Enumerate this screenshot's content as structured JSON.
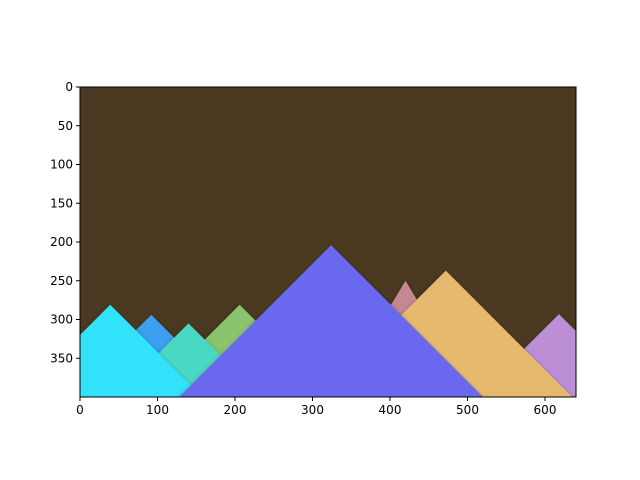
{
  "chart_data": {
    "type": "area",
    "title": "",
    "xlabel": "",
    "ylabel": "",
    "xlim": [
      0,
      640
    ],
    "ylim": [
      400,
      0
    ],
    "y_inverted": true,
    "grid": false,
    "background_color": "#4a3820",
    "xticks": [
      0,
      100,
      200,
      300,
      400,
      500,
      600
    ],
    "yticks": [
      0,
      50,
      100,
      150,
      200,
      250,
      300,
      350
    ],
    "series": [
      {
        "peak_x": 420,
        "peak_y": 250,
        "half_width": 90,
        "color": "#c48892"
      },
      {
        "peak_x": 618,
        "peak_y": 293,
        "half_width": 107,
        "color": "#bb8ed6"
      },
      {
        "peak_x": 92,
        "peak_y": 294,
        "half_width": 106,
        "color": "#3aa0f0"
      },
      {
        "peak_x": 206,
        "peak_y": 281,
        "half_width": 119,
        "color": "#8ac46e"
      },
      {
        "peak_x": 140,
        "peak_y": 305,
        "half_width": 95,
        "color": "#48d8c2"
      },
      {
        "peak_x": 39,
        "peak_y": 281,
        "half_width": 119,
        "color": "#33e2fa"
      },
      {
        "peak_x": 472,
        "peak_y": 237,
        "half_width": 163,
        "color": "#e6b96e"
      },
      {
        "peak_x": 324,
        "peak_y": 204,
        "half_width": 196,
        "color": "#6b68ee"
      }
    ]
  }
}
